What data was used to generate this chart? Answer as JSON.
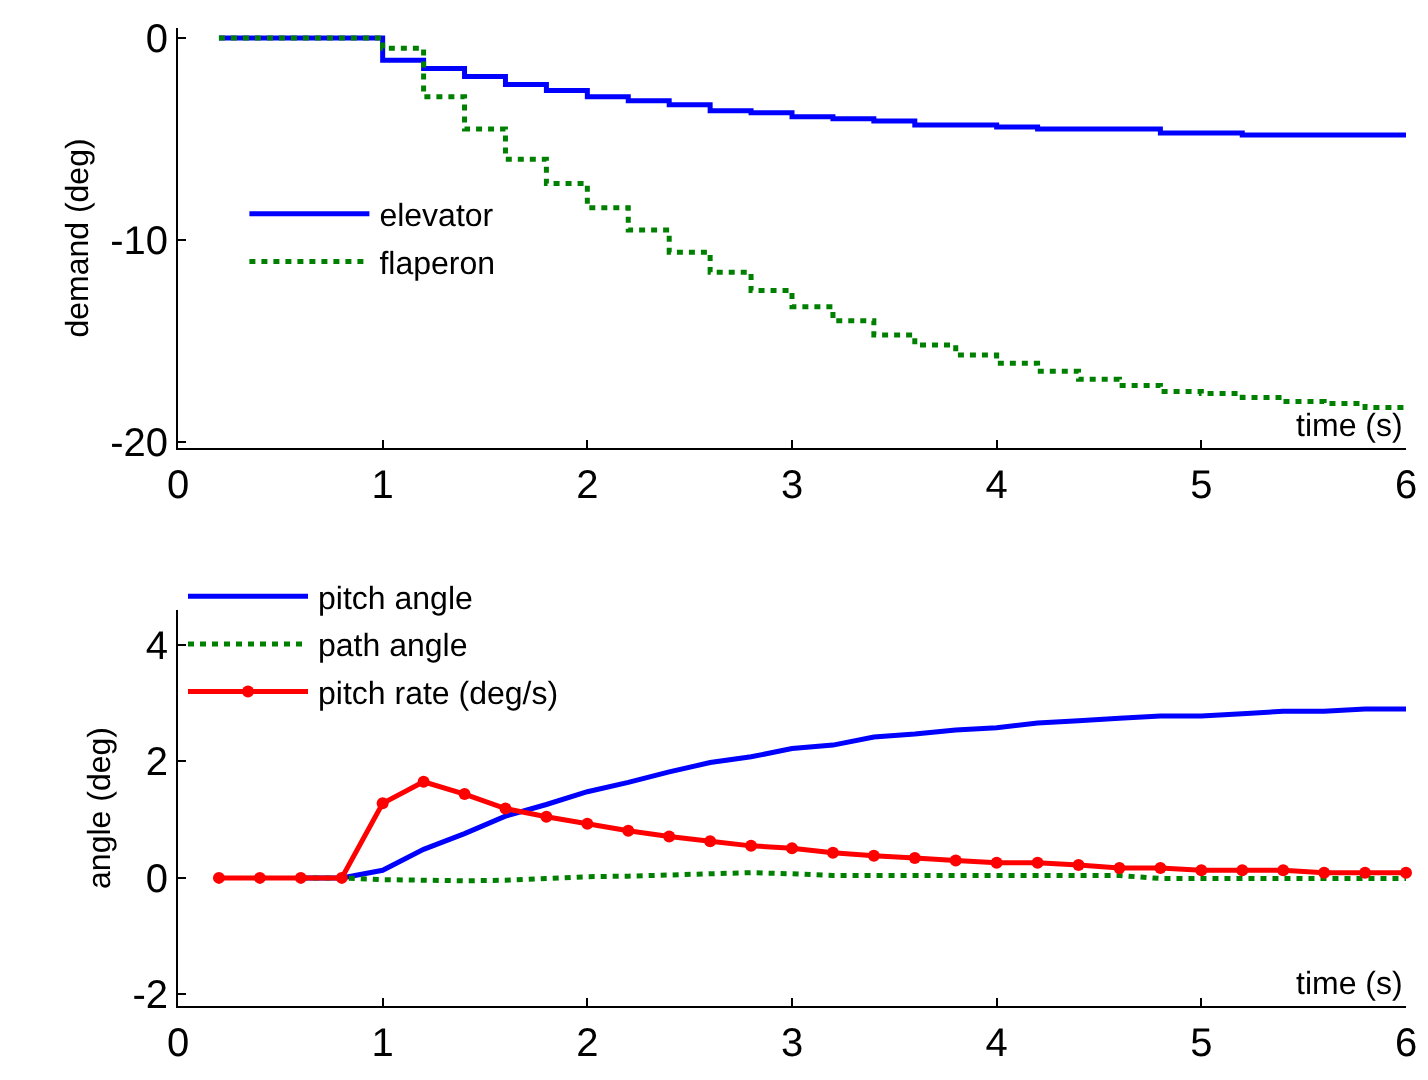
{
  "chart_data": [
    {
      "type": "step",
      "xlabel": "time (s)",
      "ylabel": "demand (deg)",
      "xlim": [
        0,
        6
      ],
      "xticks": [
        0,
        1,
        2,
        3,
        4,
        5,
        6
      ],
      "ylim": [
        -20.3,
        0.5
      ],
      "yticks": [
        -20,
        -10,
        0
      ],
      "grid": false,
      "legend": "left",
      "x": [
        0.2,
        1.0,
        1.2,
        1.4,
        1.6,
        1.8,
        2.0,
        2.2,
        2.4,
        2.6,
        2.8,
        3.0,
        3.2,
        3.4,
        3.6,
        3.8,
        4.0,
        4.2,
        4.4,
        4.6,
        4.8,
        5.0,
        5.2,
        5.4,
        5.6,
        5.8,
        6.0
      ],
      "series": [
        {
          "name": "elevator",
          "color": "#0000ff",
          "line_style": "solid",
          "values": [
            0,
            -1.1,
            -1.5,
            -1.9,
            -2.3,
            -2.6,
            -2.9,
            -3.1,
            -3.3,
            -3.6,
            -3.7,
            -3.9,
            -4.0,
            -4.1,
            -4.3,
            -4.3,
            -4.4,
            -4.5,
            -4.5,
            -4.5,
            -4.7,
            -4.7,
            -4.8,
            -4.8,
            -4.8,
            -4.8,
            -4.8
          ]
        },
        {
          "name": "flaperon",
          "color": "#008000",
          "line_style": "dotted",
          "values": [
            0,
            -0.5,
            -2.9,
            -4.5,
            -6.0,
            -7.2,
            -8.4,
            -9.5,
            -10.6,
            -11.6,
            -12.5,
            -13.3,
            -14.0,
            -14.7,
            -15.2,
            -15.7,
            -16.1,
            -16.5,
            -16.9,
            -17.2,
            -17.5,
            -17.6,
            -17.8,
            -18.0,
            -18.1,
            -18.3,
            -18.3
          ]
        }
      ]
    },
    {
      "type": "line",
      "xlabel": "time (s)",
      "ylabel": "angle (deg)",
      "xlim": [
        0,
        6
      ],
      "xticks": [
        0,
        1,
        2,
        3,
        4,
        5,
        6
      ],
      "ylim": [
        -2.2,
        4.6
      ],
      "yticks": [
        -2,
        0,
        2,
        4
      ],
      "grid": false,
      "legend": "top left",
      "x": [
        0.2,
        0.4,
        0.6,
        0.8,
        1.0,
        1.2,
        1.4,
        1.6,
        1.8,
        2.0,
        2.2,
        2.4,
        2.6,
        2.8,
        3.0,
        3.2,
        3.4,
        3.6,
        3.8,
        4.0,
        4.2,
        4.4,
        4.6,
        4.8,
        5.0,
        5.2,
        5.4,
        5.6,
        5.8,
        6.0
      ],
      "series": [
        {
          "name": "pitch angle",
          "color": "#0000ff",
          "line_style": "solid",
          "marker": "none",
          "values": [
            null,
            null,
            0,
            0,
            0.13,
            0.49,
            0.76,
            1.06,
            1.26,
            1.48,
            1.64,
            1.82,
            1.98,
            2.08,
            2.22,
            2.28,
            2.42,
            2.47,
            2.54,
            2.58,
            2.66,
            2.7,
            2.74,
            2.78,
            2.78,
            2.82,
            2.86,
            2.86,
            2.9,
            2.9
          ]
        },
        {
          "name": "path angle",
          "color": "#008000",
          "line_style": "dotted",
          "marker": "none",
          "values": [
            null,
            null,
            0,
            0,
            -0.03,
            -0.04,
            -0.05,
            -0.04,
            -0.01,
            0.02,
            0.03,
            0.05,
            0.07,
            0.09,
            0.07,
            0.04,
            0.04,
            0.04,
            0.04,
            0.04,
            0.04,
            0.04,
            0.04,
            -0.01,
            -0.01,
            -0.01,
            -0.01,
            -0.01,
            -0.01,
            -0.01
          ]
        },
        {
          "name": "pitch rate (deg/s)",
          "color": "#ff0000",
          "line_style": "solid",
          "marker": "circle",
          "values": [
            0,
            0,
            0,
            0,
            1.28,
            1.65,
            1.44,
            1.19,
            1.05,
            0.93,
            0.81,
            0.71,
            0.63,
            0.55,
            0.51,
            0.43,
            0.38,
            0.34,
            0.3,
            0.26,
            0.26,
            0.22,
            0.17,
            0.17,
            0.13,
            0.13,
            0.13,
            0.09,
            0.09,
            0.09
          ]
        }
      ]
    }
  ]
}
